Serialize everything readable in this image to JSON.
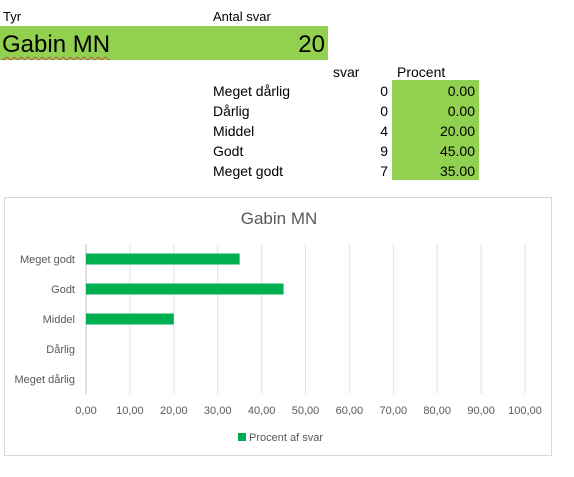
{
  "sheet": {
    "label_bull": "Tyr",
    "label_answers": "Antal svar",
    "bull_name": "Gabin MN",
    "answer_count": "20",
    "col_svar": "svar",
    "col_procent": "Procent",
    "rows": [
      {
        "label": "Meget dårlig",
        "svar": "0",
        "procent": "0.00"
      },
      {
        "label": "Dårlig",
        "svar": "0",
        "procent": "0.00"
      },
      {
        "label": "Middel",
        "svar": "4",
        "procent": "20.00"
      },
      {
        "label": "Godt",
        "svar": "9",
        "procent": "45.00"
      },
      {
        "label": "Meget godt",
        "svar": "7",
        "procent": "35.00"
      }
    ],
    "highlight_color": "#92d050"
  },
  "chart_data": {
    "type": "bar",
    "orientation": "horizontal",
    "title": "Gabin MN",
    "categories": [
      "Meget dårlig",
      "Dårlig",
      "Middel",
      "Godt",
      "Meget godt"
    ],
    "series": [
      {
        "name": "Procent af svar",
        "values": [
          0,
          0,
          20,
          45,
          35
        ],
        "color": "#00b050"
      }
    ],
    "xlim": [
      0,
      100
    ],
    "xticks": [
      "0,00",
      "10,00",
      "20,00",
      "30,00",
      "40,00",
      "50,00",
      "60,00",
      "70,00",
      "80,00",
      "90,00",
      "100,00"
    ],
    "grid": true,
    "legend_position": "bottom"
  }
}
